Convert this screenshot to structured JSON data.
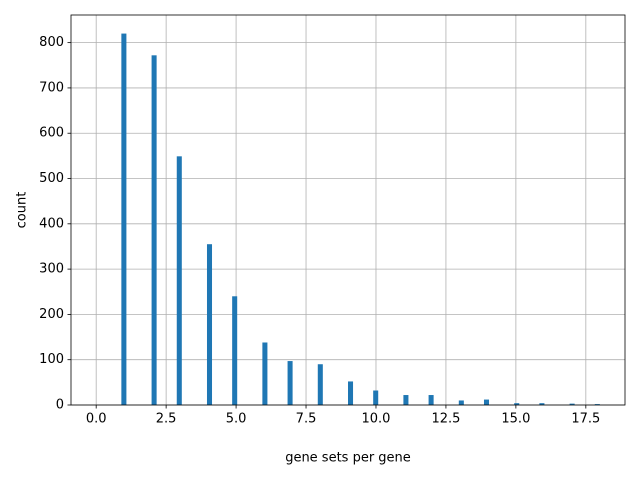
{
  "chart_data": {
    "type": "histogram",
    "xlabel": "gene sets per gene",
    "ylabel": "count",
    "color": "#1f77b4",
    "grid": true,
    "bins": [
      0,
      0.18,
      0.36,
      0.54,
      0.72,
      0.9,
      1.08,
      1.26,
      1.44,
      1.62,
      1.8,
      1.98,
      2.16,
      2.34,
      2.52,
      2.7,
      2.88,
      3.06,
      3.24,
      3.42,
      3.6,
      3.78,
      3.96,
      4.14,
      4.32,
      4.5,
      4.68,
      4.86,
      5.04,
      5.22,
      5.4,
      5.58,
      5.76,
      5.94,
      6.12,
      6.3,
      6.48,
      6.66,
      6.84,
      7.02,
      7.2,
      7.38,
      7.56,
      7.74,
      7.92,
      8.1,
      8.28,
      8.46,
      8.64,
      8.82,
      9,
      9.18,
      9.36,
      9.54,
      9.72,
      9.9,
      10.08,
      10.26,
      10.44,
      10.62,
      10.8,
      10.98,
      11.16,
      11.34,
      11.52,
      11.7,
      11.88,
      12.06,
      12.24,
      12.42,
      12.6,
      12.78,
      12.96,
      13.14,
      13.32,
      13.5,
      13.68,
      13.86,
      14.04,
      14.22,
      14.4,
      14.58,
      14.76,
      14.94,
      15.12,
      15.3,
      15.48,
      15.66,
      15.84,
      16.02,
      16.2,
      16.38,
      16.56,
      16.74,
      16.92,
      17.1,
      17.28,
      17.46,
      17.64,
      17.82,
      18
    ],
    "values": [
      0,
      0,
      0,
      0,
      0,
      820,
      0,
      0,
      0,
      0,
      0,
      772,
      0,
      0,
      0,
      0,
      549,
      0,
      0,
      0,
      0,
      0,
      355,
      0,
      0,
      0,
      0,
      240,
      0,
      0,
      0,
      0,
      0,
      138,
      0,
      0,
      0,
      0,
      97,
      0,
      0,
      0,
      0,
      0,
      90,
      0,
      0,
      0,
      0,
      0,
      52,
      0,
      0,
      0,
      0,
      32,
      0,
      0,
      0,
      0,
      0,
      22,
      0,
      0,
      0,
      0,
      22,
      0,
      0,
      0,
      0,
      0,
      10,
      0,
      0,
      0,
      0,
      12,
      0,
      0,
      0,
      0,
      0,
      4,
      0,
      0,
      0,
      0,
      4,
      0,
      0,
      0,
      0,
      0,
      3,
      0,
      0,
      0,
      0,
      2
    ],
    "xlim": [
      -0.9,
      18.9
    ],
    "ylim": [
      0,
      861
    ],
    "xticks": [
      {
        "value": 0,
        "label": "0.0"
      },
      {
        "value": 2.5,
        "label": "2.5"
      },
      {
        "value": 5,
        "label": "5.0"
      },
      {
        "value": 7.5,
        "label": "7.5"
      },
      {
        "value": 10,
        "label": "10.0"
      },
      {
        "value": 12.5,
        "label": "12.5"
      },
      {
        "value": 15,
        "label": "15.0"
      },
      {
        "value": 17.5,
        "label": "17.5"
      }
    ],
    "yticks": [
      0,
      100,
      200,
      300,
      400,
      500,
      600,
      700,
      800
    ]
  }
}
